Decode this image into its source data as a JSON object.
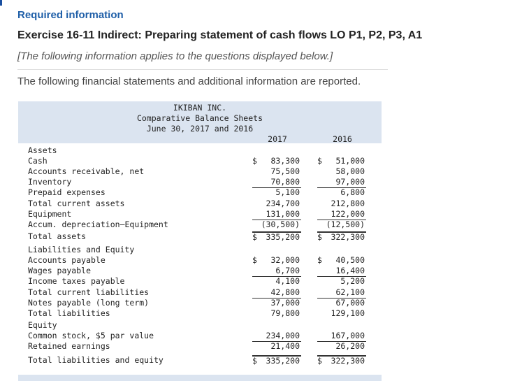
{
  "header": {
    "required": "Required information",
    "exercise": "Exercise 16-11 Indirect: Preparing statement of cash flows LO P1, P2, P3, A1",
    "note": "[The following information applies to the questions displayed below.]",
    "intro": "The following financial statements and additional information are reported."
  },
  "sheet": {
    "company": "IKIBAN INC.",
    "title": "Comparative Balance Sheets",
    "date": "June 30, 2017 and 2016",
    "year1": "2017",
    "year2": "2016",
    "rows": [
      {
        "label": "Assets",
        "c1": "",
        "v1": "",
        "c2": "",
        "v2": ""
      },
      {
        "label": "Cash",
        "c1": "$",
        "v1": "83,300",
        "c2": "$",
        "v2": "51,000"
      },
      {
        "label": "Accounts receivable, net",
        "c1": "",
        "v1": "75,500",
        "c2": "",
        "v2": "58,000"
      },
      {
        "label": "Inventory",
        "c1": "",
        "v1": "70,800",
        "c2": "",
        "v2": "97,000"
      },
      {
        "label": "Prepaid expenses",
        "c1": "",
        "v1": "5,100",
        "c2": "",
        "v2": "6,800"
      },
      {
        "label": "Total current assets",
        "c1": "",
        "v1": "234,700",
        "c2": "",
        "v2": "212,800"
      },
      {
        "label": "Equipment",
        "c1": "",
        "v1": "131,000",
        "c2": "",
        "v2": "122,000"
      },
      {
        "label": "Accum. depreciation—Equipment",
        "c1": "",
        "v1": "(30,500)",
        "c2": "",
        "v2": "(12,500)"
      },
      {
        "label": "Total assets",
        "c1": "$",
        "v1": "335,200",
        "c2": "$",
        "v2": "322,300"
      },
      {
        "label": "Liabilities and Equity",
        "c1": "",
        "v1": "",
        "c2": "",
        "v2": ""
      },
      {
        "label": "Accounts payable",
        "c1": "$",
        "v1": "32,000",
        "c2": "$",
        "v2": "40,500"
      },
      {
        "label": "Wages payable",
        "c1": "",
        "v1": "6,700",
        "c2": "",
        "v2": "16,400"
      },
      {
        "label": "Income taxes payable",
        "c1": "",
        "v1": "4,100",
        "c2": "",
        "v2": "5,200"
      },
      {
        "label": "Total current liabilities",
        "c1": "",
        "v1": "42,800",
        "c2": "",
        "v2": "62,100"
      },
      {
        "label": "Notes payable (long term)",
        "c1": "",
        "v1": "37,000",
        "c2": "",
        "v2": "67,000"
      },
      {
        "label": "Total liabilities",
        "c1": "",
        "v1": "79,800",
        "c2": "",
        "v2": "129,100"
      },
      {
        "label": "Equity",
        "c1": "",
        "v1": "",
        "c2": "",
        "v2": ""
      },
      {
        "label": "Common stock, $5 par value",
        "c1": "",
        "v1": "234,000",
        "c2": "",
        "v2": "167,000"
      },
      {
        "label": "Retained earnings",
        "c1": "",
        "v1": "21,400",
        "c2": "",
        "v2": "26,200"
      },
      {
        "label": "Total liabilities and equity",
        "c1": "$",
        "v1": "335,200",
        "c2": "$",
        "v2": "322,300"
      }
    ]
  }
}
